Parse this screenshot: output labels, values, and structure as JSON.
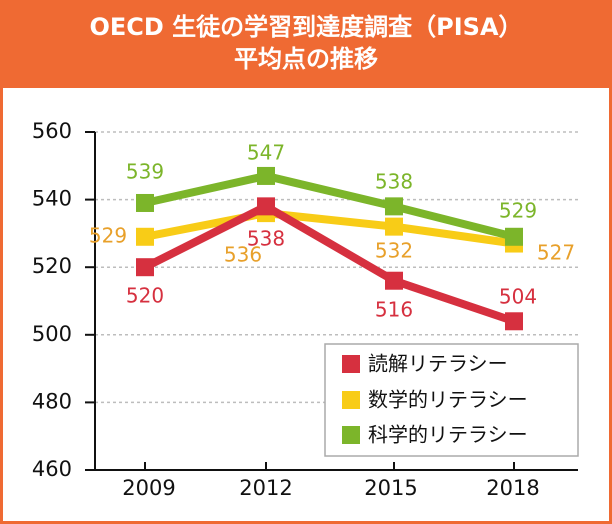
{
  "chart_data": {
    "type": "line",
    "title_lines": [
      "OECD 生徒の学習到達度調査（PISA）",
      "平均点の推移"
    ],
    "categories": [
      "2009",
      "2012",
      "2015",
      "2018"
    ],
    "yticks": [
      "560",
      "540",
      "520",
      "500",
      "480",
      "460"
    ],
    "ylim": [
      460,
      560
    ],
    "grid": true,
    "legend_position": "bottom-right",
    "series": [
      {
        "name": "読解リテラシー",
        "color": "#d6303f",
        "label_color": "#d6303f",
        "values": [
          520,
          538,
          516,
          504
        ],
        "labels": [
          "520",
          "538",
          "516",
          "504"
        ]
      },
      {
        "name": "数学的リテラシー",
        "color": "#f8cc17",
        "label_color": "#e8a02a",
        "values": [
          529,
          536,
          532,
          527
        ],
        "labels": [
          "529",
          "536",
          "532",
          "527"
        ]
      },
      {
        "name": "科学的リテラシー",
        "color": "#7cb52a",
        "label_color": "#7cb52a",
        "values": [
          539,
          547,
          538,
          529
        ],
        "labels": [
          "539",
          "547",
          "538",
          "529"
        ]
      }
    ]
  }
}
